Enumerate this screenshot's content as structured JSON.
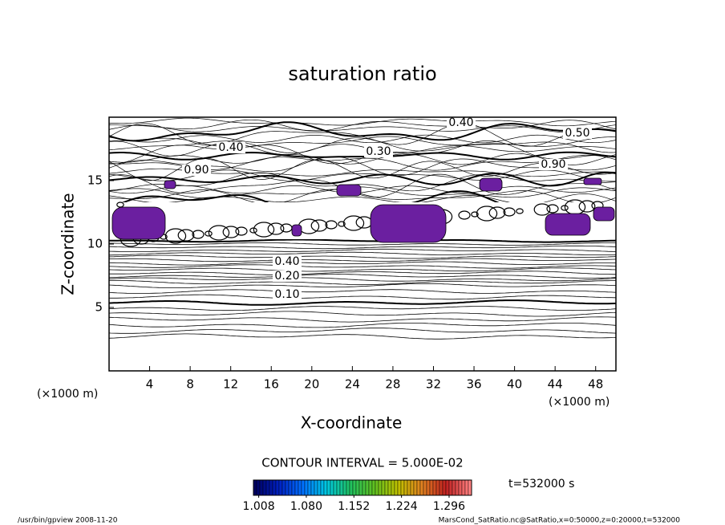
{
  "chart_data": {
    "type": "contour",
    "title": "saturation ratio",
    "x_label": "X-coordinate",
    "y_label": "Z-coordinate",
    "x_unit": "(×1000 m)",
    "y_unit": "(×1000 m)",
    "xlim": [
      0,
      50
    ],
    "xticks": [
      4,
      8,
      12,
      16,
      20,
      24,
      28,
      32,
      36,
      40,
      44,
      48
    ],
    "ylim": [
      0,
      20
    ],
    "yticks": [
      5,
      10,
      15
    ],
    "contour_labels": [
      "0.40",
      "0.50",
      "0.40",
      "0.30",
      "0.90",
      "0.90",
      "0.40",
      "0.20",
      "0.10"
    ],
    "contour_interval": "CONTOUR INTERVAL = 5.000E-02",
    "fill_color": "#6b1fa0",
    "colorbar": {
      "lim": [
        1.0,
        1.33
      ],
      "ticks": [
        1.008,
        {
          "value": 1.08,
          "label": "1.080"
        },
        1.152,
        1.224,
        1.296
      ],
      "colors": [
        "#000060",
        "#0020c0",
        "#0070ff",
        "#00c8e0",
        "#20c060",
        "#60c020",
        "#c0c000",
        "#e08020",
        "#c02020",
        "#ff8080"
      ]
    },
    "time_label": "t=532000 s",
    "footer_left": "/usr/bin/gpview  2008-11-20",
    "footer_right": "MarsCond_SatRatio.nc@SatRatio,x=0:50000,z=0:20000,t=532000"
  }
}
